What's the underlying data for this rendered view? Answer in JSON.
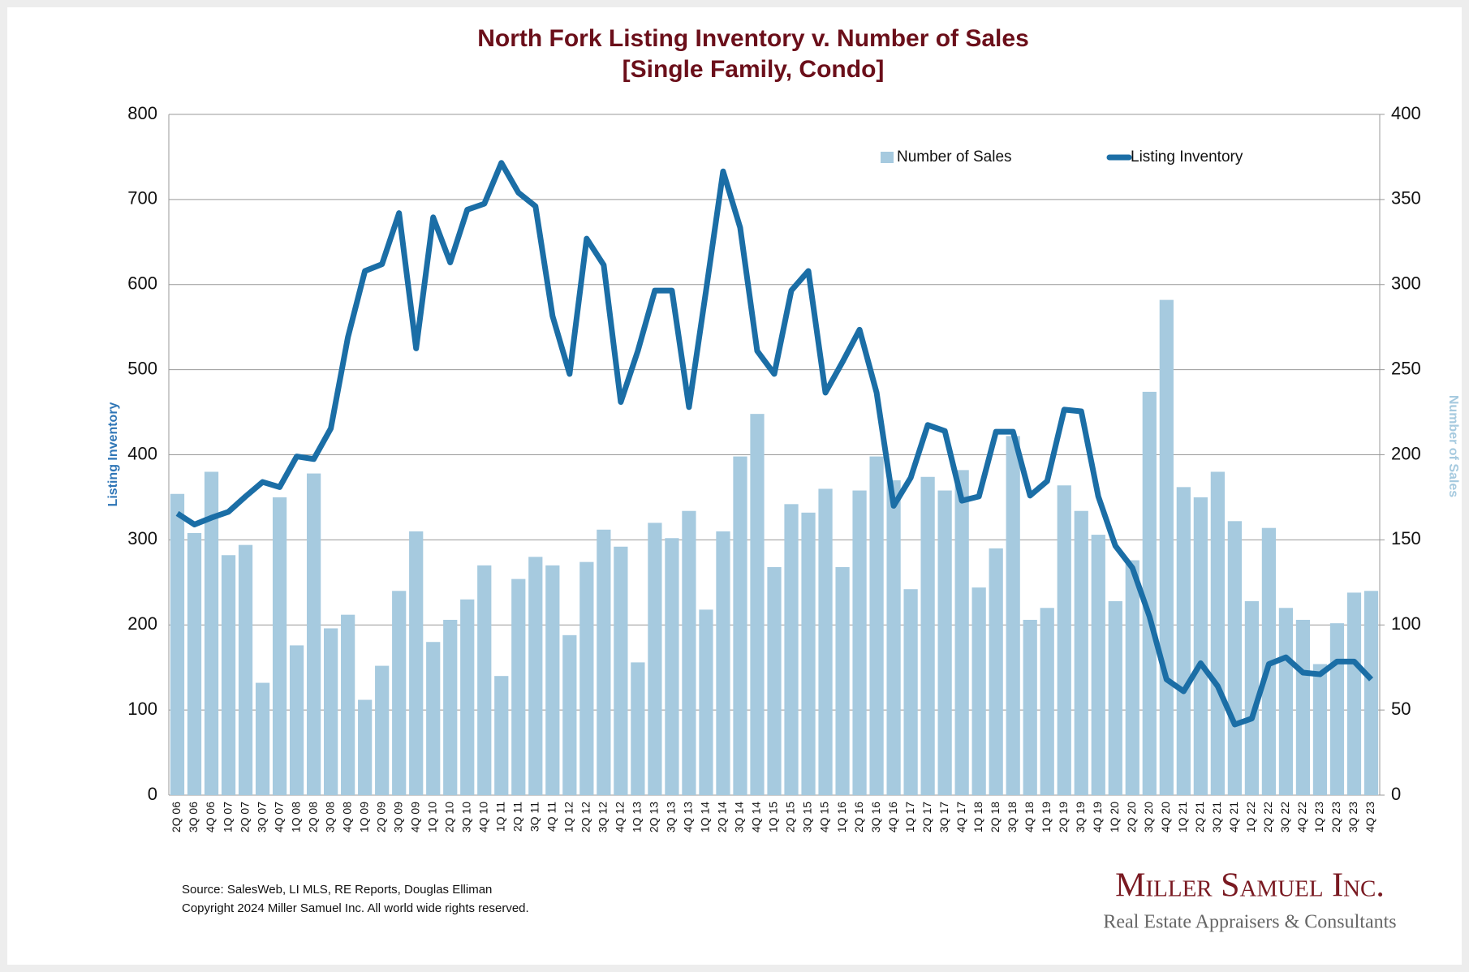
{
  "chart_data": {
    "type": "combo",
    "title": "North Fork Listing Inventory v. Number of Sales",
    "subtitle": "[Single Family, Condo]",
    "ylabel": "Listing Inventory",
    "y2label": "Number of Sales",
    "categories": [
      "2Q 06",
      "3Q 06",
      "4Q 06",
      "1Q 07",
      "2Q 07",
      "3Q 07",
      "4Q 07",
      "1Q 08",
      "2Q 08",
      "3Q 08",
      "4Q 08",
      "1Q 09",
      "2Q 09",
      "3Q 09",
      "4Q 09",
      "1Q 10",
      "2Q 10",
      "3Q 10",
      "4Q 10",
      "1Q 11",
      "2Q 11",
      "3Q 11",
      "4Q 11",
      "1Q 12",
      "2Q 12",
      "3Q 12",
      "4Q 12",
      "1Q 13",
      "2Q 13",
      "3Q 13",
      "4Q 13",
      "1Q 14",
      "2Q 14",
      "3Q 14",
      "4Q 14",
      "1Q 15",
      "2Q 15",
      "3Q 15",
      "4Q 15",
      "1Q 16",
      "2Q 16",
      "3Q 16",
      "4Q 16",
      "1Q 17",
      "2Q 17",
      "3Q 17",
      "4Q 17",
      "1Q 18",
      "2Q 18",
      "3Q 18",
      "4Q 18",
      "1Q 19",
      "2Q 19",
      "3Q 19",
      "4Q 19",
      "1Q 20",
      "2Q 20",
      "3Q 20",
      "4Q 20",
      "1Q 21",
      "2Q 21",
      "3Q 21",
      "4Q 21",
      "1Q 22",
      "2Q 22",
      "3Q 22",
      "4Q 22",
      "1Q 23",
      "2Q 23",
      "3Q 23",
      "4Q 23"
    ],
    "series": [
      {
        "name": "Number of Sales",
        "type": "bar",
        "axis": "y2",
        "color": "#a6cadf",
        "values": [
          177,
          154,
          190,
          141,
          147,
          66,
          175,
          88,
          189,
          98,
          106,
          56,
          76,
          120,
          155,
          90,
          103,
          115,
          135,
          70,
          127,
          140,
          135,
          94,
          137,
          156,
          146,
          78,
          160,
          151,
          167,
          109,
          155,
          199,
          224,
          134,
          171,
          166,
          180,
          134,
          179,
          199,
          185,
          121,
          187,
          179,
          191,
          122,
          145,
          211,
          103,
          110,
          182,
          167,
          153,
          114,
          138,
          237,
          291,
          181,
          175,
          190,
          161,
          114,
          157,
          110,
          103,
          77,
          101,
          119,
          120
        ]
      },
      {
        "name": "Listing Inventory",
        "type": "line",
        "axis": "y",
        "color": "#1b6ea6",
        "values": [
          331,
          318,
          326,
          333,
          351,
          368,
          362,
          398,
          395,
          431,
          538,
          616,
          624,
          684,
          525,
          679,
          626,
          688,
          695,
          743,
          708,
          692,
          563,
          495,
          654,
          623,
          462,
          522,
          593,
          593,
          456,
          593,
          733,
          667,
          522,
          495,
          593,
          616,
          473,
          509,
          547,
          473,
          340,
          373,
          435,
          428,
          346,
          351,
          427,
          427,
          352,
          369,
          453,
          451,
          351,
          293,
          267,
          210,
          136,
          122,
          155,
          128,
          83,
          90,
          154,
          162,
          144,
          142,
          157,
          157,
          136
        ]
      }
    ],
    "ylim": [
      0,
      800
    ],
    "yticks": [
      0,
      100,
      200,
      300,
      400,
      500,
      600,
      700,
      800
    ],
    "y2lim": [
      0,
      400
    ],
    "y2ticks": [
      0,
      50,
      100,
      150,
      200,
      250,
      300,
      350,
      400
    ],
    "grid": true,
    "legend": "top"
  },
  "footer": {
    "source": "Source: SalesWeb, LI MLS, RE Reports, Douglas Elliman",
    "copyright": "Copyright 2024 Miller Samuel Inc.  All world wide rights reserved."
  },
  "logo": {
    "name": "Miller Samuel Inc.",
    "tagline": "Real Estate Appraisers & Consultants"
  }
}
